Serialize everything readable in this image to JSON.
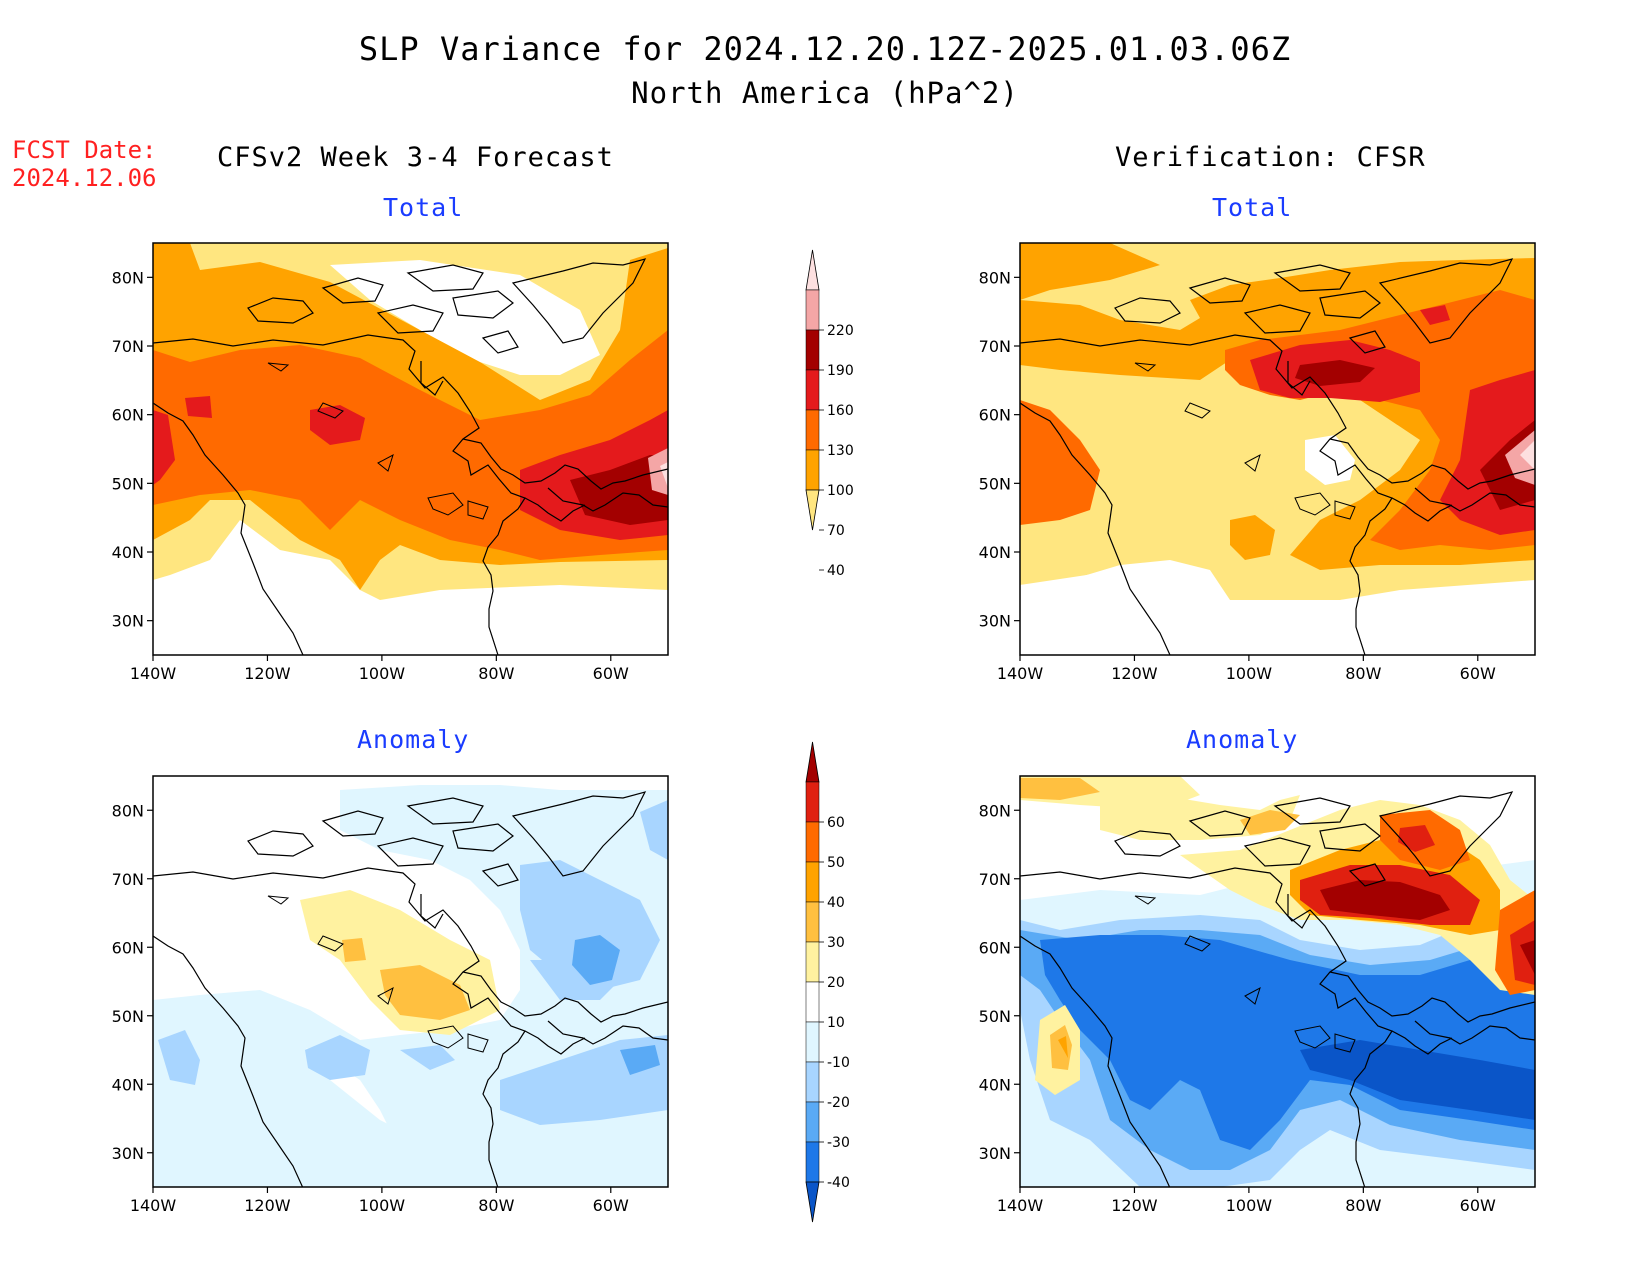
{
  "header": {
    "title": "SLP Variance for 2024.12.20.12Z-2025.01.03.06Z",
    "subtitle": "North America (hPa^2)",
    "fcst_label": "FCST Date:",
    "fcst_date": "2024.12.06",
    "left_column": "CFSv2 Week 3-4 Forecast",
    "right_column": "Verification: CFSR"
  },
  "panels": {
    "total_label": "Total",
    "anomaly_label": "Anomaly"
  },
  "axes": {
    "lat_ticks": [
      "80N",
      "70N",
      "60N",
      "50N",
      "40N",
      "30N"
    ],
    "lon_ticks": [
      "140W",
      "120W",
      "100W",
      "80W",
      "60W"
    ]
  },
  "colorbars": {
    "total": {
      "levels": [
        "220",
        "190",
        "160",
        "130",
        "100",
        "70",
        "40"
      ],
      "colors": [
        "#fde0e0",
        "#f4a6a6",
        "#a30000",
        "#e41a1c",
        "#ff6a00",
        "#ffa300",
        "#ffe680"
      ]
    },
    "anomaly": {
      "levels": [
        "60",
        "50",
        "40",
        "30",
        "20",
        "10",
        "-10",
        "-20",
        "-30",
        "-40"
      ],
      "colors": [
        "#a30000",
        "#e02010",
        "#ff6a00",
        "#ffa300",
        "#ffc040",
        "#fff2a0",
        "#ffffff",
        "#e0f6ff",
        "#a8d5ff",
        "#5aaaf5",
        "#1e78e8",
        "#0a55c8"
      ]
    }
  }
}
